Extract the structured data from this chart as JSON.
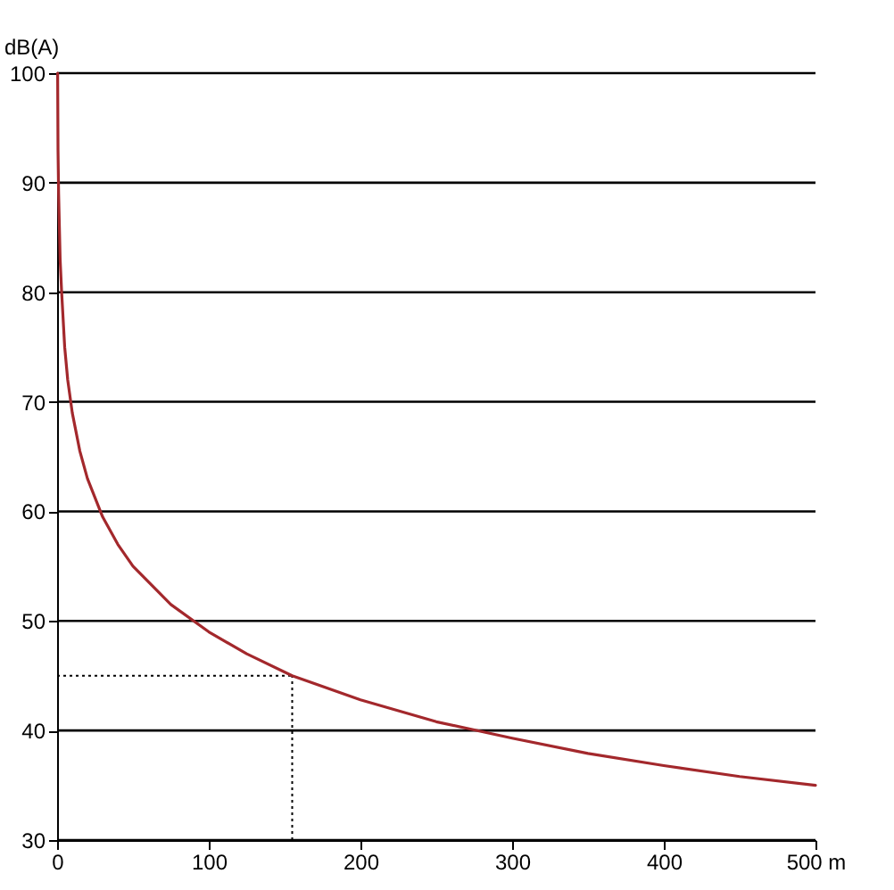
{
  "chart_data": {
    "type": "line",
    "ylabel": "dB(A)",
    "x": [
      0.35,
      0.6,
      1,
      2,
      3,
      5,
      7,
      10,
      15,
      20,
      30,
      40,
      50,
      75,
      100,
      125,
      155,
      200,
      250,
      300,
      350,
      400,
      450,
      500
    ],
    "series": [
      {
        "color": "#a3282c",
        "values": [
          100,
          93,
          89,
          83,
          80,
          75,
          72,
          69,
          65.5,
          63,
          59.5,
          57,
          55,
          51.5,
          49,
          47,
          45,
          42.8,
          40.8,
          39.3,
          37.9,
          36.8,
          35.8,
          35
        ]
      }
    ],
    "xlim": [
      0,
      500
    ],
    "xticks": [
      0,
      100,
      200,
      300,
      400,
      {
        "value": 500,
        "label": "500 m"
      }
    ],
    "ylim": [
      30,
      100
    ],
    "yticks": [
      30,
      40,
      50,
      60,
      70,
      80,
      90,
      100
    ],
    "grid": "y",
    "marker": "none",
    "line_style": "solid",
    "ref_lines": [
      {
        "axis": "x",
        "value": 155,
        "line_style": "dotted",
        "color": "#000000"
      },
      {
        "axis": "y",
        "value": 45,
        "line_style": "dotted",
        "color": "#000000"
      }
    ]
  }
}
